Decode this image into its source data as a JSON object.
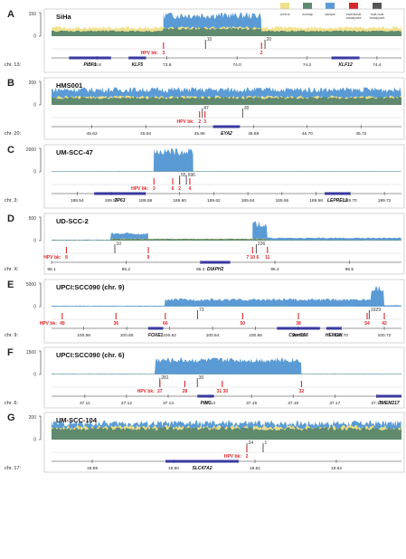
{
  "legend": {
    "items": [
      {
        "label": "control",
        "color": "#f0e08a"
      },
      {
        "label": "overlap",
        "color": "#5f8a6e"
      },
      {
        "label": "sample",
        "color": "#5b9bd5"
      },
      {
        "label": "insertional\nbreakpoint",
        "color": "#d9262b"
      },
      {
        "label": "host-host\nbreakpoint",
        "color": "#555555"
      }
    ]
  },
  "colors": {
    "control": "#f0e08a",
    "overlap": "#5f8a6e",
    "sample": "#5b9bd5",
    "insertional": "#d9262b",
    "hosthost": "#555555",
    "gene": "#3a3aa0",
    "hpv_text": "#d9262b"
  },
  "chart_data": [
    {
      "letter": "A",
      "type": "area",
      "title": "SiHa",
      "coverage_axis": {
        "ticks": [
          "150",
          "0"
        ],
        "max": 150
      },
      "chrom_label": "chr. 13:",
      "x_ticks": [
        {
          "value": 73.6,
          "label": "73.6"
        },
        {
          "value": 73.8,
          "label": "73.8"
        },
        {
          "value": 74.0,
          "label": "74.0"
        },
        {
          "value": 74.2,
          "label": "74.2"
        },
        {
          "value": 74.4,
          "label": "74.4"
        }
      ],
      "x_range": [
        73.47,
        74.47
      ],
      "coverage_segments": [
        {
          "x0": 73.47,
          "x1": 73.79,
          "control": 55,
          "sample": 38
        },
        {
          "x0": 73.79,
          "x1": 74.07,
          "control": 55,
          "sample": 145
        },
        {
          "x0": 74.07,
          "x1": 74.47,
          "control": 55,
          "sample": 38
        }
      ],
      "read_counts": [
        {
          "x": 73.91,
          "label": "10"
        },
        {
          "x": 74.08,
          "label": "20"
        }
      ],
      "hpv_bk": [
        {
          "x": 73.79,
          "label": "3"
        },
        {
          "x": 74.07,
          "label": "2"
        }
      ],
      "genes": [
        {
          "x0": 73.52,
          "x1": 73.64,
          "label": "PIBF1"
        },
        {
          "x0": 73.69,
          "x1": 73.74,
          "label": "KLF5"
        },
        {
          "x0": 74.27,
          "x1": 74.35,
          "label": "KLF12"
        }
      ]
    },
    {
      "letter": "B",
      "type": "area",
      "title": "HMS001",
      "coverage_axis": {
        "ticks": [
          "200",
          "0"
        ],
        "max": 200
      },
      "chrom_label": "chr. 20:",
      "x_ticks": [
        {
          "value": 45.62,
          "label": "45.62"
        },
        {
          "value": 45.64,
          "label": "45.64"
        },
        {
          "value": 45.66,
          "label": "45.66"
        },
        {
          "value": 45.68,
          "label": "45.68"
        },
        {
          "value": 45.7,
          "label": "45.70"
        },
        {
          "value": 45.72,
          "label": "45.72"
        }
      ],
      "x_range": [
        45.605,
        45.735
      ],
      "coverage_segments": [
        {
          "x0": 45.605,
          "x1": 45.735,
          "control": 70,
          "sample": 140
        }
      ],
      "read_counts": [
        {
          "x": 45.661,
          "label": "47"
        },
        {
          "x": 45.676,
          "label": "30"
        }
      ],
      "hpv_bk": [
        {
          "x": 45.66,
          "label": "2"
        },
        {
          "x": 45.662,
          "label": "3"
        }
      ],
      "genes": [
        {
          "x0": 45.665,
          "x1": 45.675,
          "label": "EYA2"
        }
      ]
    },
    {
      "letter": "C",
      "type": "area",
      "title": "UM-SCC-47",
      "coverage_axis": {
        "ticks": [
          "2000",
          "0"
        ],
        "max": 2000
      },
      "chrom_label": "chr. 3:",
      "x_ticks": [
        {
          "value": 189.54,
          "label": "189.54"
        },
        {
          "value": 189.56,
          "label": "189.56"
        },
        {
          "value": 189.58,
          "label": "189.58"
        },
        {
          "value": 189.6,
          "label": "189.60"
        },
        {
          "value": 189.62,
          "label": "189.62"
        },
        {
          "value": 189.64,
          "label": "189.64"
        },
        {
          "value": 189.66,
          "label": "189.66"
        },
        {
          "value": 189.68,
          "label": "189.68"
        },
        {
          "value": 189.7,
          "label": "189.70"
        },
        {
          "value": 189.72,
          "label": "189.72"
        }
      ],
      "x_range": [
        189.525,
        189.73
      ],
      "coverage_segments": [
        {
          "x0": 189.525,
          "x1": 189.585,
          "control": 20,
          "sample": 60
        },
        {
          "x0": 189.585,
          "x1": 189.608,
          "control": 20,
          "sample": 1900
        },
        {
          "x0": 189.608,
          "x1": 189.73,
          "control": 20,
          "sample": 60
        }
      ],
      "read_counts": [
        {
          "x": 189.6,
          "label": "55"
        },
        {
          "x": 189.604,
          "label": "696"
        }
      ],
      "hpv_bk": [
        {
          "x": 189.585,
          "label": "3"
        },
        {
          "x": 189.596,
          "label": "6"
        },
        {
          "x": 189.6,
          "label": "2"
        },
        {
          "x": 189.606,
          "label": "4"
        }
      ],
      "genes": [
        {
          "x0": 189.55,
          "x1": 189.58,
          "label": "TP63"
        },
        {
          "x0": 189.685,
          "x1": 189.7,
          "label": "LEPREL1"
        }
      ]
    },
    {
      "letter": "D",
      "type": "area",
      "title": "UD-SCC-2",
      "coverage_axis": {
        "ticks": [
          "500",
          "0"
        ],
        "max": 500
      },
      "chrom_label": "chr. X:",
      "x_ticks": [
        {
          "value": 96.1,
          "label": "96.1"
        },
        {
          "value": 96.2,
          "label": "96.2"
        },
        {
          "value": 96.3,
          "label": "96.3"
        },
        {
          "value": 96.4,
          "label": "96.4"
        },
        {
          "value": 96.5,
          "label": "96.5"
        }
      ],
      "x_range": [
        96.1,
        96.57
      ],
      "coverage_segments": [
        {
          "x0": 96.1,
          "x1": 96.18,
          "control": 10,
          "sample": 20
        },
        {
          "x0": 96.18,
          "x1": 96.23,
          "control": 40,
          "sample": 160
        },
        {
          "x0": 96.23,
          "x1": 96.37,
          "control": 40,
          "sample": 40
        },
        {
          "x0": 96.37,
          "x1": 96.39,
          "control": 40,
          "sample": 380
        },
        {
          "x0": 96.39,
          "x1": 96.57,
          "control": 10,
          "sample": 60
        }
      ],
      "read_counts": [
        {
          "x": 96.185,
          "label": "10"
        },
        {
          "x": 96.375,
          "label": "226"
        }
      ],
      "hpv_bk": [
        {
          "x": 96.12,
          "label": "8"
        },
        {
          "x": 96.23,
          "label": "9"
        },
        {
          "x": 96.37,
          "label": "7 10 6"
        },
        {
          "x": 96.39,
          "label": "11"
        }
      ],
      "genes": [
        {
          "x0": 96.3,
          "x1": 96.34,
          "label": "DIAPH2"
        }
      ]
    },
    {
      "letter": "E",
      "type": "area",
      "title": "UPCI:SCC090 (chr. 9)",
      "coverage_axis": {
        "ticks": [
          "5000",
          "0"
        ],
        "max": 5000
      },
      "chrom_label": "chr. 9:",
      "x_ticks": [
        {
          "value": 100.58,
          "label": "100.58"
        },
        {
          "value": 100.6,
          "label": "100.60"
        },
        {
          "value": 100.62,
          "label": "100.62"
        },
        {
          "value": 100.64,
          "label": "100.64"
        },
        {
          "value": 100.66,
          "label": "100.66"
        },
        {
          "value": 100.68,
          "label": "100.68"
        },
        {
          "value": 100.7,
          "label": "100.70"
        },
        {
          "value": 100.72,
          "label": "100.72"
        }
      ],
      "x_range": [
        100.565,
        100.728
      ],
      "coverage_segments": [
        {
          "x0": 100.565,
          "x1": 100.618,
          "control": 10,
          "sample": 200
        },
        {
          "x0": 100.618,
          "x1": 100.714,
          "control": 10,
          "sample": 1600
        },
        {
          "x0": 100.714,
          "x1": 100.72,
          "control": 10,
          "sample": 4200
        },
        {
          "x0": 100.72,
          "x1": 100.728,
          "control": 10,
          "sample": 300
        }
      ],
      "read_counts": [
        {
          "x": 100.633,
          "label": "73"
        },
        {
          "x": 100.713,
          "label": "1929"
        }
      ],
      "hpv_bk": [
        {
          "x": 100.57,
          "label": "49"
        },
        {
          "x": 100.595,
          "label": "36"
        },
        {
          "x": 100.618,
          "label": "66"
        },
        {
          "x": 100.654,
          "label": "50"
        },
        {
          "x": 100.68,
          "label": "38"
        },
        {
          "x": 100.712,
          "label": "54"
        },
        {
          "x": 100.72,
          "label": "42"
        }
      ],
      "genes": [
        {
          "x0": 100.61,
          "x1": 100.617,
          "label": "FOXE1"
        },
        {
          "x0": 100.67,
          "x1": 100.69,
          "label": "C9orf156"
        },
        {
          "x0": 100.693,
          "x1": 100.7,
          "label": "HEMGN"
        }
      ]
    },
    {
      "letter": "F",
      "type": "area",
      "title": "UPCI:SCC090 (chr. 6)",
      "coverage_axis": {
        "ticks": [
          "1500",
          "0"
        ],
        "max": 1500
      },
      "chrom_label": "chr. 6:",
      "x_ticks": [
        {
          "value": 37.11,
          "label": "37.11"
        },
        {
          "value": 37.12,
          "label": "37.12"
        },
        {
          "value": 37.13,
          "label": "37.13"
        },
        {
          "value": 37.14,
          "label": "37.14"
        },
        {
          "value": 37.15,
          "label": "37.15"
        },
        {
          "value": 37.16,
          "label": "37.16"
        },
        {
          "value": 37.17,
          "label": "37.17"
        },
        {
          "value": 37.18,
          "label": "37.18"
        }
      ],
      "x_range": [
        37.102,
        37.186
      ],
      "coverage_segments": [
        {
          "x0": 37.102,
          "x1": 37.127,
          "control": 10,
          "sample": 50
        },
        {
          "x0": 37.127,
          "x1": 37.162,
          "control": 10,
          "sample": 1000
        },
        {
          "x0": 37.162,
          "x1": 37.186,
          "control": 10,
          "sample": 50
        }
      ],
      "read_counts": [
        {
          "x": 37.128,
          "label": "281"
        },
        {
          "x": 37.137,
          "label": "30"
        }
      ],
      "hpv_bk": [
        {
          "x": 37.128,
          "label": "27"
        },
        {
          "x": 37.134,
          "label": "28"
        },
        {
          "x": 37.143,
          "label": "31 30"
        },
        {
          "x": 37.162,
          "label": "32"
        }
      ],
      "genes": [
        {
          "x0": 37.137,
          "x1": 37.141,
          "label": "PIM1"
        },
        {
          "x0": 37.18,
          "x1": 37.186,
          "label": "TMEM217"
        }
      ]
    },
    {
      "letter": "G",
      "type": "area",
      "title": "UM-SCC-104",
      "coverage_axis": {
        "ticks": [
          "200",
          "0"
        ],
        "max": 200
      },
      "chrom_label": "chr. 17:",
      "x_ticks": [
        {
          "value": 19.59,
          "label": "19.59"
        },
        {
          "value": 19.6,
          "label": "19.60"
        },
        {
          "value": 19.61,
          "label": "19.61"
        },
        {
          "value": 19.62,
          "label": "19.62"
        }
      ],
      "x_range": [
        19.585,
        19.628
      ],
      "coverage_segments": [
        {
          "x0": 19.585,
          "x1": 19.628,
          "control": 110,
          "sample": 150
        }
      ],
      "read_counts": [
        {
          "x": 19.609,
          "label": "24"
        },
        {
          "x": 19.611,
          "label": "1"
        }
      ],
      "hpv_bk": [
        {
          "x": 19.609,
          "label": "2"
        }
      ],
      "genes": [
        {
          "x0": 19.599,
          "x1": 19.608,
          "label": "SLC47A2"
        }
      ]
    }
  ]
}
